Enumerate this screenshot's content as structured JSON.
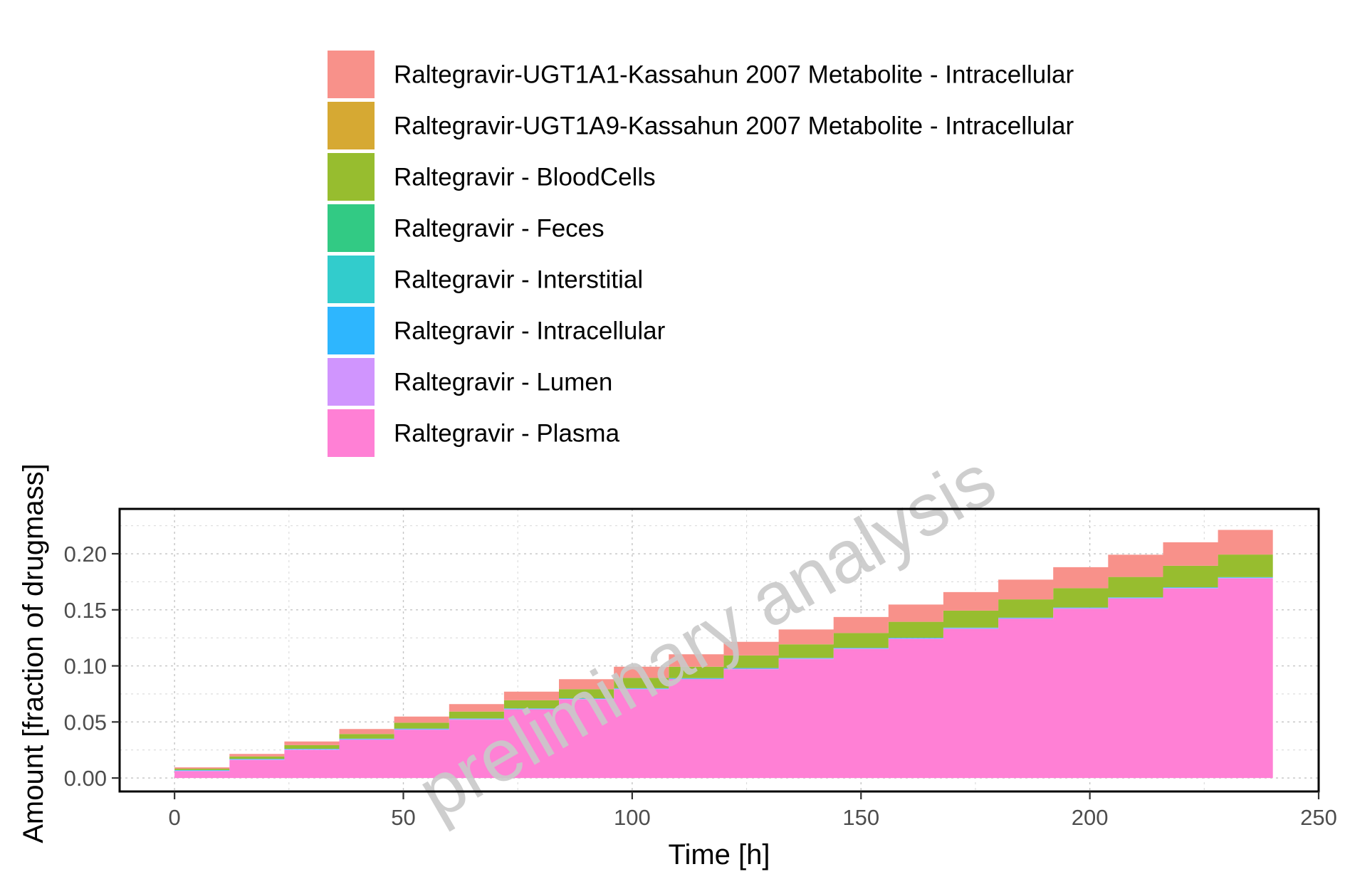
{
  "chart_data": {
    "type": "area",
    "stacked": true,
    "step": true,
    "xlabel": "Time [h]",
    "ylabel": "Amount [fraction of drugmass]",
    "xlim": [
      -12,
      250
    ],
    "ylim": [
      -0.012,
      0.24
    ],
    "x_ticks": [
      0,
      50,
      100,
      150,
      200,
      250
    ],
    "x_tick_labels": [
      "0",
      "50",
      "100",
      "150",
      "200",
      "250"
    ],
    "y_ticks": [
      0.0,
      0.05,
      0.1,
      0.15,
      0.2
    ],
    "y_tick_labels": [
      "0.00",
      "0.05",
      "0.10",
      "0.15",
      "0.20"
    ],
    "grid": true,
    "legend_position": "top",
    "watermark": "preliminary analysis",
    "x": [
      0,
      12,
      24,
      36,
      48,
      60,
      72,
      84,
      96,
      108,
      120,
      132,
      144,
      156,
      168,
      180,
      192,
      204,
      216,
      228,
      240
    ],
    "series": [
      {
        "name": "Raltegravir - Plasma",
        "color": "#FF80D5",
        "values": [
          0.006,
          0.016,
          0.025,
          0.034,
          0.043,
          0.052,
          0.061,
          0.07,
          0.079,
          0.088,
          0.097,
          0.106,
          0.115,
          0.124,
          0.133,
          0.142,
          0.151,
          0.16,
          0.169,
          0.178,
          0.178
        ]
      },
      {
        "name": "Raltegravir - Lumen",
        "color": "#D095FE",
        "values": [
          0.0005,
          0.0005,
          0.0005,
          0.0005,
          0.0005,
          0.0005,
          0.0005,
          0.0005,
          0.0005,
          0.0005,
          0.0005,
          0.0005,
          0.0005,
          0.0005,
          0.0005,
          0.0005,
          0.0005,
          0.0005,
          0.0005,
          0.0005,
          0.0005
        ]
      },
      {
        "name": "Raltegravir - Intracellular",
        "color": "#2EB6FE",
        "values": [
          0.0004,
          0.0004,
          0.0004,
          0.0004,
          0.0004,
          0.0004,
          0.0004,
          0.0004,
          0.0004,
          0.0004,
          0.0004,
          0.0004,
          0.0004,
          0.0004,
          0.0004,
          0.0004,
          0.0004,
          0.0004,
          0.0004,
          0.0004,
          0.0004
        ]
      },
      {
        "name": "Raltegravir - Interstitial",
        "color": "#32CCCC",
        "values": [
          0.0002,
          0.0002,
          0.0002,
          0.0002,
          0.0002,
          0.0002,
          0.0002,
          0.0002,
          0.0002,
          0.0002,
          0.0002,
          0.0002,
          0.0002,
          0.0002,
          0.0002,
          0.0002,
          0.0002,
          0.0002,
          0.0002,
          0.0002,
          0.0002
        ]
      },
      {
        "name": "Raltegravir - Feces",
        "color": "#32CA84",
        "values": [
          0,
          0,
          0,
          0,
          0,
          0,
          0,
          0,
          0,
          0,
          0,
          0,
          0,
          0,
          0,
          0,
          0,
          0,
          0,
          0,
          0
        ]
      },
      {
        "name": "Raltegravir - BloodCells",
        "color": "#97BD2F",
        "values": [
          0.0012,
          0.0022,
          0.0032,
          0.0042,
          0.0052,
          0.0062,
          0.0072,
          0.0082,
          0.0092,
          0.0102,
          0.0112,
          0.0122,
          0.0132,
          0.0142,
          0.0152,
          0.0162,
          0.0172,
          0.0182,
          0.0192,
          0.0202,
          0.0202
        ]
      },
      {
        "name": "Raltegravir-UGT1A9-Kassahun 2007 Metabolite - Intracellular",
        "color": "#D6A933",
        "values": [
          0,
          0,
          0,
          0,
          0,
          0,
          0,
          0,
          0,
          0,
          0,
          0,
          0,
          0,
          0,
          0,
          0,
          0,
          0,
          0,
          0
        ]
      },
      {
        "name": "Raltegravir-UGT1A1-Kassahun 2007 Metabolite - Intracellular",
        "color": "#F8918A",
        "values": [
          0.0012,
          0.0022,
          0.0033,
          0.0044,
          0.0055,
          0.0066,
          0.0077,
          0.0088,
          0.0099,
          0.011,
          0.0121,
          0.0132,
          0.0143,
          0.0154,
          0.0165,
          0.0176,
          0.0187,
          0.0198,
          0.0209,
          0.022,
          0.029
        ]
      }
    ],
    "legend_order": [
      "Raltegravir-UGT1A1-Kassahun 2007 Metabolite - Intracellular",
      "Raltegravir-UGT1A9-Kassahun 2007 Metabolite - Intracellular",
      "Raltegravir - BloodCells",
      "Raltegravir - Feces",
      "Raltegravir - Interstitial",
      "Raltegravir - Intracellular",
      "Raltegravir - Lumen",
      "Raltegravir - Plasma"
    ]
  }
}
